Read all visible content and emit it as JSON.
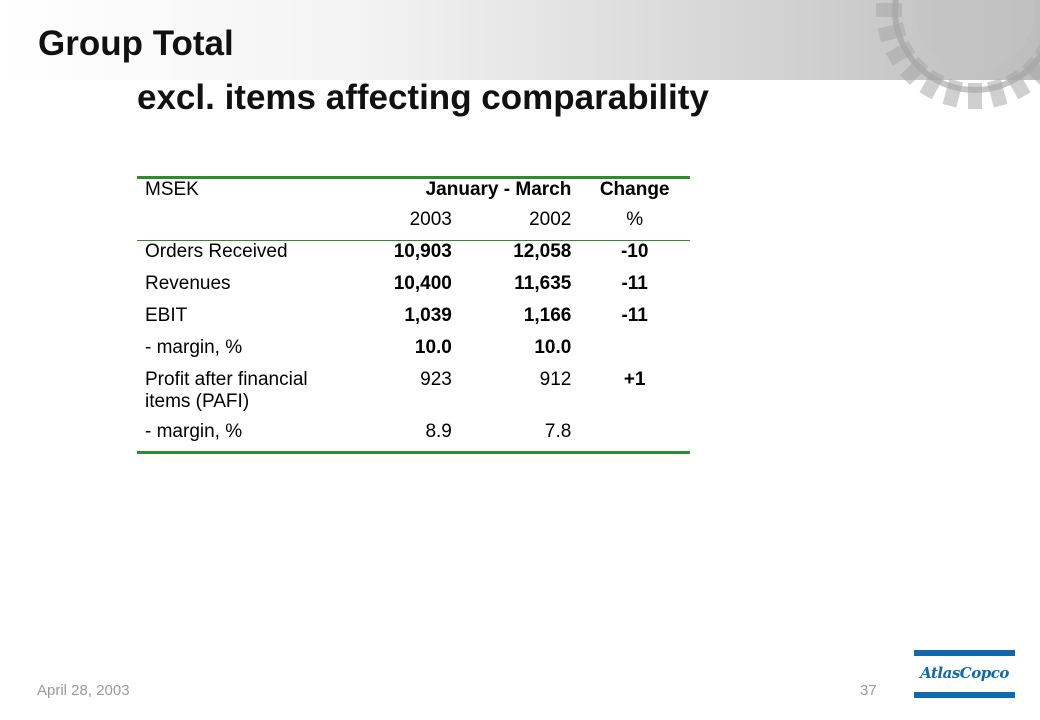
{
  "slide": {
    "title": "Group Total",
    "subtitle": "excl. items affecting comparability"
  },
  "table": {
    "unit": "MSEK",
    "period": "January - March",
    "change_header": "Change",
    "years": [
      "2003",
      "2002"
    ],
    "change_unit": "%",
    "rows": [
      {
        "label": "Orders Received",
        "v2003": "10,903",
        "v2002": "12,058",
        "change": "-10"
      },
      {
        "label": "Revenues",
        "v2003": "10,400",
        "v2002": "11,635",
        "change": "-11"
      },
      {
        "label": "EBIT",
        "v2003": "1,039",
        "v2002": "1,166",
        "change": "-11"
      },
      {
        "label": "- margin, %",
        "v2003": "10.0",
        "v2002": "10.0",
        "change": ""
      },
      {
        "label_line1": "Profit after financial",
        "label_line2": "items (PAFI)",
        "v2003": "923",
        "v2002": "912",
        "change": "+1"
      },
      {
        "label": "- margin, %",
        "v2003": "8.9",
        "v2002": "7.8",
        "change": ""
      }
    ]
  },
  "footer": {
    "date": "April 28, 2003",
    "page": "37"
  },
  "logo": {
    "text": "AtlasCopco",
    "color": "#0f68b0"
  },
  "colors": {
    "rule": "#2e8b2e"
  }
}
